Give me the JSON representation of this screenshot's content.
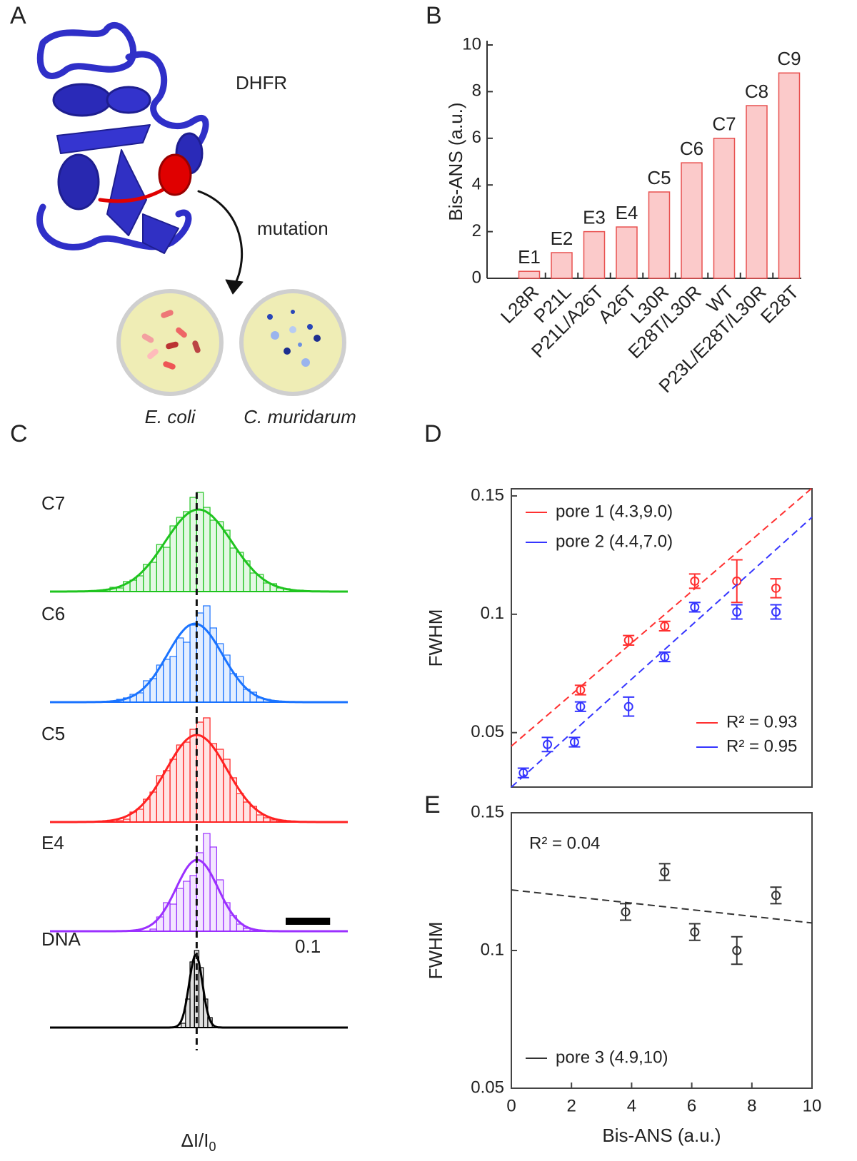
{
  "panel_labels": [
    "A",
    "B",
    "C",
    "D",
    "E"
  ],
  "structure": {
    "name": "DHFR",
    "arrow_label": "mutation",
    "organisms": [
      "E. coli",
      "C. muridarum"
    ]
  },
  "chart_data": [
    {
      "type": "bar",
      "ylabel": "Bis-ANS (a.u.)",
      "categories": [
        "L28R",
        "P21L",
        "P21L/A26T",
        "A26T",
        "L30R",
        "E28T/L30R",
        "WT",
        "P23L/E28T/L30R",
        "E28T"
      ],
      "values": [
        0.3,
        1.1,
        2.0,
        2.2,
        3.7,
        4.95,
        6.0,
        7.4,
        8.8
      ],
      "bar_labels": [
        "E1",
        "E2",
        "E3",
        "E4",
        "C5",
        "C6",
        "C7",
        "C8",
        "C9"
      ],
      "color": "#fbcaca",
      "edge_color": "#e8504f",
      "ylim": [
        0,
        10
      ],
      "yticks": [
        0,
        2,
        4,
        6,
        8,
        10
      ]
    },
    {
      "type": "histogram",
      "xlabel": {
        "text": "ΔI/I",
        "subscript": "0"
      },
      "xlim": [
        -0.33,
        0.34
      ],
      "reference_x": 0,
      "scale_bar": 0.1,
      "series": [
        {
          "name": "C7",
          "color": "#1fc41f",
          "bins": [
            -0.21,
            -0.195,
            -0.18,
            -0.165,
            -0.15,
            -0.135,
            -0.12,
            -0.105,
            -0.09,
            -0.075,
            -0.06,
            -0.045,
            -0.03,
            -0.015,
            0,
            0.015,
            0.03,
            0.045,
            0.06,
            0.075,
            0.09,
            0.105,
            0.12,
            0.135,
            0.15,
            0.165,
            0.18,
            0.195,
            0.21,
            0.225,
            0.24
          ],
          "counts": [
            3,
            6,
            5,
            14,
            16,
            22,
            38,
            41,
            66,
            62,
            92,
            104,
            112,
            132,
            139,
            118,
            100,
            98,
            86,
            61,
            55,
            43,
            26,
            24,
            12,
            11,
            5,
            4,
            2,
            2
          ],
          "fit": {
            "mean": 0.004,
            "sd": 0.075,
            "peak": 115
          }
        },
        {
          "name": "C6",
          "color": "#1a73ff",
          "bins": [
            -0.18,
            -0.165,
            -0.15,
            -0.135,
            -0.12,
            -0.105,
            -0.09,
            -0.075,
            -0.06,
            -0.045,
            -0.03,
            -0.015,
            0,
            0.015,
            0.03,
            0.045,
            0.06,
            0.075,
            0.09,
            0.105,
            0.12,
            0.135,
            0.15,
            0.165,
            0.18
          ],
          "counts": [
            4,
            6,
            11,
            13,
            30,
            33,
            52,
            60,
            64,
            90,
            84,
            108,
            125,
            135,
            104,
            82,
            66,
            40,
            36,
            18,
            14,
            6,
            4,
            2
          ],
          "fit": {
            "mean": -0.004,
            "sd": 0.062,
            "peak": 110
          }
        },
        {
          "name": "C5",
          "color": "#ff2222",
          "bins": [
            -0.18,
            -0.165,
            -0.15,
            -0.135,
            -0.12,
            -0.105,
            -0.09,
            -0.075,
            -0.06,
            -0.045,
            -0.03,
            -0.015,
            0,
            0.015,
            0.03,
            0.045,
            0.06,
            0.075,
            0.09,
            0.105,
            0.12,
            0.135,
            0.15,
            0.165,
            0.18,
            0.195
          ],
          "counts": [
            2,
            4,
            14,
            18,
            32,
            42,
            65,
            72,
            88,
            108,
            112,
            130,
            140,
            146,
            110,
            102,
            88,
            62,
            40,
            28,
            22,
            10,
            6,
            3,
            1
          ],
          "fit": {
            "mean": 0,
            "sd": 0.068,
            "peak": 122
          }
        },
        {
          "name": "E4",
          "color": "#9b30ff",
          "bins": [
            -0.105,
            -0.09,
            -0.075,
            -0.06,
            -0.045,
            -0.03,
            -0.015,
            0,
            0.015,
            0.03,
            0.045,
            0.06,
            0.075,
            0.09,
            0.105,
            0.12
          ],
          "counts": [
            3,
            20,
            40,
            38,
            60,
            70,
            78,
            110,
            137,
            118,
            72,
            40,
            22,
            10,
            4
          ],
          "fit": {
            "mean": 0.001,
            "sd": 0.047,
            "peak": 100
          }
        },
        {
          "name": "DNA",
          "color": "#000000",
          "bins": [
            -0.035,
            -0.025,
            -0.015,
            -0.005,
            0.005,
            0.015,
            0.025,
            0.035
          ],
          "counts": [
            6,
            40,
            92,
            108,
            84,
            40,
            14
          ],
          "fit": {
            "mean": -0.002,
            "sd": 0.015,
            "peak": 102
          }
        }
      ]
    },
    {
      "type": "scatter",
      "ylabel": "FWHM",
      "xlim": [
        0,
        10
      ],
      "ylim": [
        0.027,
        0.153
      ],
      "yticks": [
        0.05,
        0.1,
        0.15
      ],
      "legend": "upper left",
      "series": [
        {
          "name": "pore 1 (4.3,9.0)",
          "color": "#ff3030",
          "r2_label": "R² = 0.93",
          "x": [
            2.3,
            3.9,
            5.1,
            6.1,
            7.5,
            8.8
          ],
          "values": [
            0.068,
            0.089,
            0.095,
            0.114,
            0.114,
            0.111
          ],
          "errors": [
            0.002,
            0.002,
            0.002,
            0.003,
            0.009,
            0.004
          ],
          "fit": {
            "intercept": 0.0443,
            "slope": 0.0109
          }
        },
        {
          "name": "pore 2 (4.4,7.0)",
          "color": "#3535ff",
          "r2_label": "R² = 0.95",
          "x": [
            0.4,
            1.2,
            2.1,
            2.3,
            3.9,
            5.1,
            6.1,
            7.5,
            8.8
          ],
          "values": [
            0.033,
            0.045,
            0.046,
            0.061,
            0.061,
            0.082,
            0.103,
            0.101,
            0.101
          ],
          "errors": [
            0.002,
            0.003,
            0.002,
            0.002,
            0.004,
            0.002,
            0.002,
            0.003,
            0.003
          ],
          "fit": {
            "intercept": 0.027,
            "slope": 0.0114
          }
        }
      ]
    },
    {
      "type": "scatter",
      "ylabel": "FWHM",
      "xlabel": "Bis-ANS (a.u.)",
      "xlim": [
        0,
        10
      ],
      "ylim": [
        0.05,
        0.15
      ],
      "yticks": [
        0.05,
        0.1,
        0.15
      ],
      "xticks": [
        0,
        2,
        4,
        6,
        8,
        10
      ],
      "legend": "lower left",
      "r2_label": "R² = 0.04",
      "series": [
        {
          "name": "pore 3 (4.9,10)",
          "color": "#333333",
          "x": [
            3.8,
            5.1,
            6.1,
            7.5,
            8.8
          ],
          "values": [
            0.114,
            0.1285,
            0.1067,
            0.1,
            0.12
          ],
          "errors": [
            0.003,
            0.003,
            0.003,
            0.005,
            0.003
          ],
          "fit": {
            "intercept": 0.122,
            "slope": -0.0012
          }
        }
      ]
    }
  ]
}
